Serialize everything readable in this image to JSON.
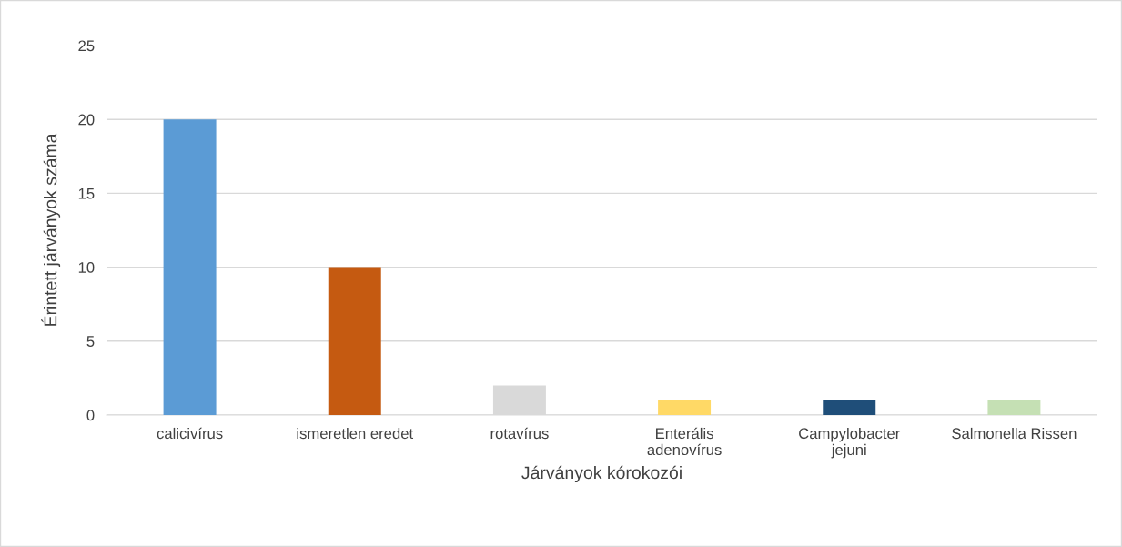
{
  "chart_data": {
    "type": "bar",
    "xlabel": "Járványok kórokozói",
    "ylabel": "Érintett járványok száma",
    "categories": [
      "calicivírus",
      "ismeretlen eredet",
      "rotavírus",
      "Enterális adenovírus",
      "Campylobacter jejuni",
      "Salmonella Rissen"
    ],
    "values": [
      20,
      10,
      2,
      1,
      1,
      1
    ],
    "colors": [
      "#5b9bd5",
      "#c55a11",
      "#d9d9d9",
      "#ffd966",
      "#1f4e79",
      "#c5e0b4"
    ],
    "ylim": [
      0,
      25
    ],
    "yticks": [
      0,
      5,
      10,
      15,
      20,
      25
    ],
    "grid": "y",
    "legend": false
  }
}
